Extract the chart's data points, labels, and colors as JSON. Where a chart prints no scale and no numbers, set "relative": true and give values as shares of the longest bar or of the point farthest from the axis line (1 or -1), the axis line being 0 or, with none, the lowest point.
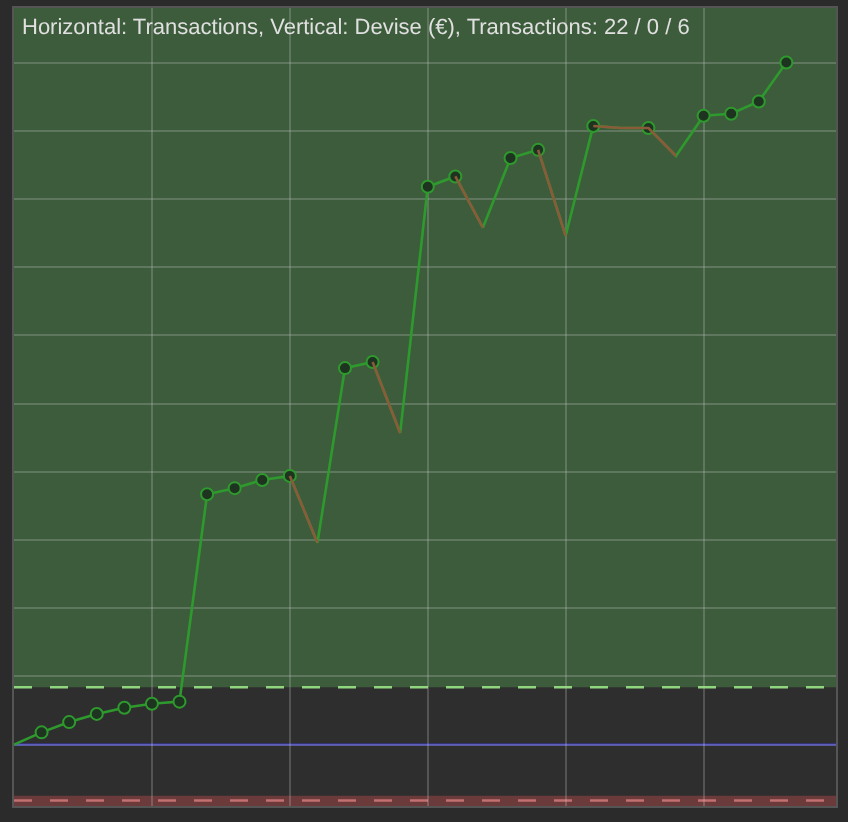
{
  "chart_data": {
    "type": "line",
    "title": "Horizontal: Transactions, Vertical: Devise (€), Transactions: 22 / 0 / 6",
    "relative": true,
    "categories": [
      null,
      null,
      null,
      null,
      null,
      null,
      null,
      null,
      null,
      null,
      null,
      null,
      null,
      null,
      null,
      null,
      null,
      null,
      null,
      null,
      null,
      null,
      null,
      null,
      null,
      null,
      null,
      null,
      null
    ],
    "series": [
      {
        "color": "#2e9a2e",
        "values": [
          0,
          0.018,
          0.033,
          0.045,
          0.054,
          0.06,
          0.063,
          0.367,
          0.376,
          0.388,
          0.394,
          0.296,
          0.552,
          0.561,
          0.457,
          0.818,
          0.833,
          0.758,
          0.86,
          0.872,
          0.746,
          0.907,
          0.904,
          0.904,
          0.863,
          0.922,
          0.925,
          0.943,
          1
        ]
      },
      {
        "color": "#8a5a3a",
        "marker": "none",
        "values": [
          null,
          null,
          null,
          null,
          null,
          null,
          null,
          null,
          null,
          null,
          0.394,
          0.296,
          null,
          0.561,
          0.457,
          null,
          0.833,
          0.758,
          null,
          null,
          null,
          0.907,
          0.904,
          0.904,
          0.863,
          null,
          null,
          null,
          null
        ]
      },
      {
        "color": "#8a5a3a",
        "marker": "none",
        "values": [
          null,
          null,
          null,
          null,
          null,
          null,
          null,
          null,
          null,
          null,
          null,
          null,
          null,
          null,
          null,
          null,
          null,
          null,
          null,
          0.872,
          0.746,
          null,
          null,
          null,
          null,
          null,
          null,
          null,
          null
        ]
      }
    ],
    "marker": "circle",
    "grid": true,
    "ref_lines": [
      {
        "axis": "y",
        "value": 0.084,
        "color": "#8fd67f",
        "line_style": "dashed"
      },
      {
        "axis": "y",
        "value": 0,
        "color": "#3a3ab8",
        "line_style": "solid"
      },
      {
        "axis": "y",
        "value": -0.082,
        "color": "#c27070",
        "line_style": "dashed"
      }
    ],
    "bands": [
      {
        "axis": "y",
        "from": 0.084,
        "to": 1.08,
        "color": "#3d5c3b"
      },
      {
        "axis": "y",
        "from": -0.09,
        "to": -0.075,
        "color": "#6b3a3a"
      }
    ]
  }
}
